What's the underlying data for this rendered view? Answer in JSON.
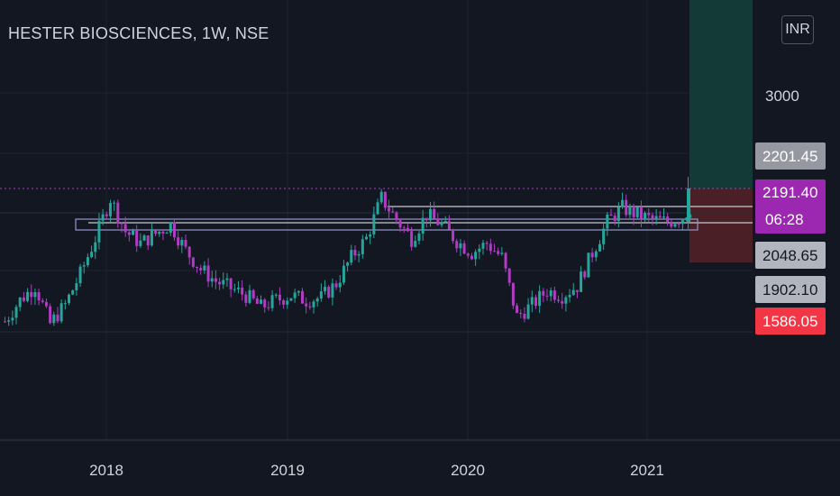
{
  "header": {
    "title": "HESTER BIOSCIENCES, 1W, NSE",
    "currency_button": "INR"
  },
  "colors": {
    "background": "#131722",
    "grid": "#1f2330",
    "up_candle": "#26a69a",
    "down_candle": "#b23bc4",
    "text": "#d1d4dc",
    "current_price_tag": "#9c27b0",
    "stop_loss_tag": "#f23645",
    "target_zone": "#133a37",
    "risk_zone": "#4a1f26",
    "level_tag": "#9598a1"
  },
  "chart_data": {
    "type": "candlestick",
    "x_axis": {
      "ticks": [
        "2018",
        "2019",
        "2020",
        "2021"
      ]
    },
    "y_axis": {
      "ticks": [
        "3000"
      ],
      "scale": "linear"
    },
    "price_labels": [
      {
        "name": "target",
        "value": "2201.45"
      },
      {
        "name": "last_price",
        "value": "2191.40"
      },
      {
        "name": "countdown",
        "value": "06:28"
      },
      {
        "name": "level",
        "value": "2048.65"
      },
      {
        "name": "level",
        "value": "1902.10"
      },
      {
        "name": "stop_loss",
        "value": "1586.05"
      }
    ],
    "candles_approx": [
      {
        "date": "2017-05",
        "close": 1630
      },
      {
        "date": "2017-06",
        "close": 1720
      },
      {
        "date": "2017-07",
        "close": 1780
      },
      {
        "date": "2017-08",
        "close": 1620
      },
      {
        "date": "2017-09",
        "close": 1700
      },
      {
        "date": "2017-10",
        "close": 1830
      },
      {
        "date": "2017-11",
        "close": 1980
      },
      {
        "date": "2017-12",
        "close": 2150
      },
      {
        "date": "2018-01",
        "close": 2010
      },
      {
        "date": "2018-02",
        "close": 1960
      },
      {
        "date": "2018-03",
        "close": 2000
      },
      {
        "date": "2018-04",
        "close": 2040
      },
      {
        "date": "2018-05",
        "close": 1930
      },
      {
        "date": "2018-06",
        "close": 1850
      },
      {
        "date": "2018-07",
        "close": 1800
      },
      {
        "date": "2018-08",
        "close": 1770
      },
      {
        "date": "2018-09",
        "close": 1740
      },
      {
        "date": "2018-10",
        "close": 1690
      },
      {
        "date": "2018-11",
        "close": 1720
      },
      {
        "date": "2018-12",
        "close": 1740
      },
      {
        "date": "2019-01",
        "close": 1720
      },
      {
        "date": "2019-02",
        "close": 1730
      },
      {
        "date": "2019-03",
        "close": 1790
      },
      {
        "date": "2019-04",
        "close": 1900
      },
      {
        "date": "2019-05",
        "close": 1980
      },
      {
        "date": "2019-06",
        "close": 2150
      },
      {
        "date": "2019-07",
        "close": 2060
      },
      {
        "date": "2019-08",
        "close": 1980
      },
      {
        "date": "2019-09",
        "close": 2080
      },
      {
        "date": "2019-10",
        "close": 2040
      },
      {
        "date": "2019-11",
        "close": 1970
      },
      {
        "date": "2019-12",
        "close": 1920
      },
      {
        "date": "2020-01",
        "close": 1960
      },
      {
        "date": "2020-02",
        "close": 1900
      },
      {
        "date": "2020-03",
        "close": 1650
      },
      {
        "date": "2020-04",
        "close": 1700
      },
      {
        "date": "2020-05",
        "close": 1760
      },
      {
        "date": "2020-06",
        "close": 1740
      },
      {
        "date": "2020-07",
        "close": 1780
      },
      {
        "date": "2020-08",
        "close": 1920
      },
      {
        "date": "2020-09",
        "close": 2050
      },
      {
        "date": "2020-10",
        "close": 2110
      },
      {
        "date": "2020-11",
        "close": 2080
      },
      {
        "date": "2020-12",
        "close": 2060
      },
      {
        "date": "2021-01",
        "close": 2050
      },
      {
        "date": "2021-02",
        "close": 2070
      },
      {
        "date": "2021-03",
        "close": 2150
      },
      {
        "date": "2021-04",
        "close": 2191.4
      }
    ]
  }
}
